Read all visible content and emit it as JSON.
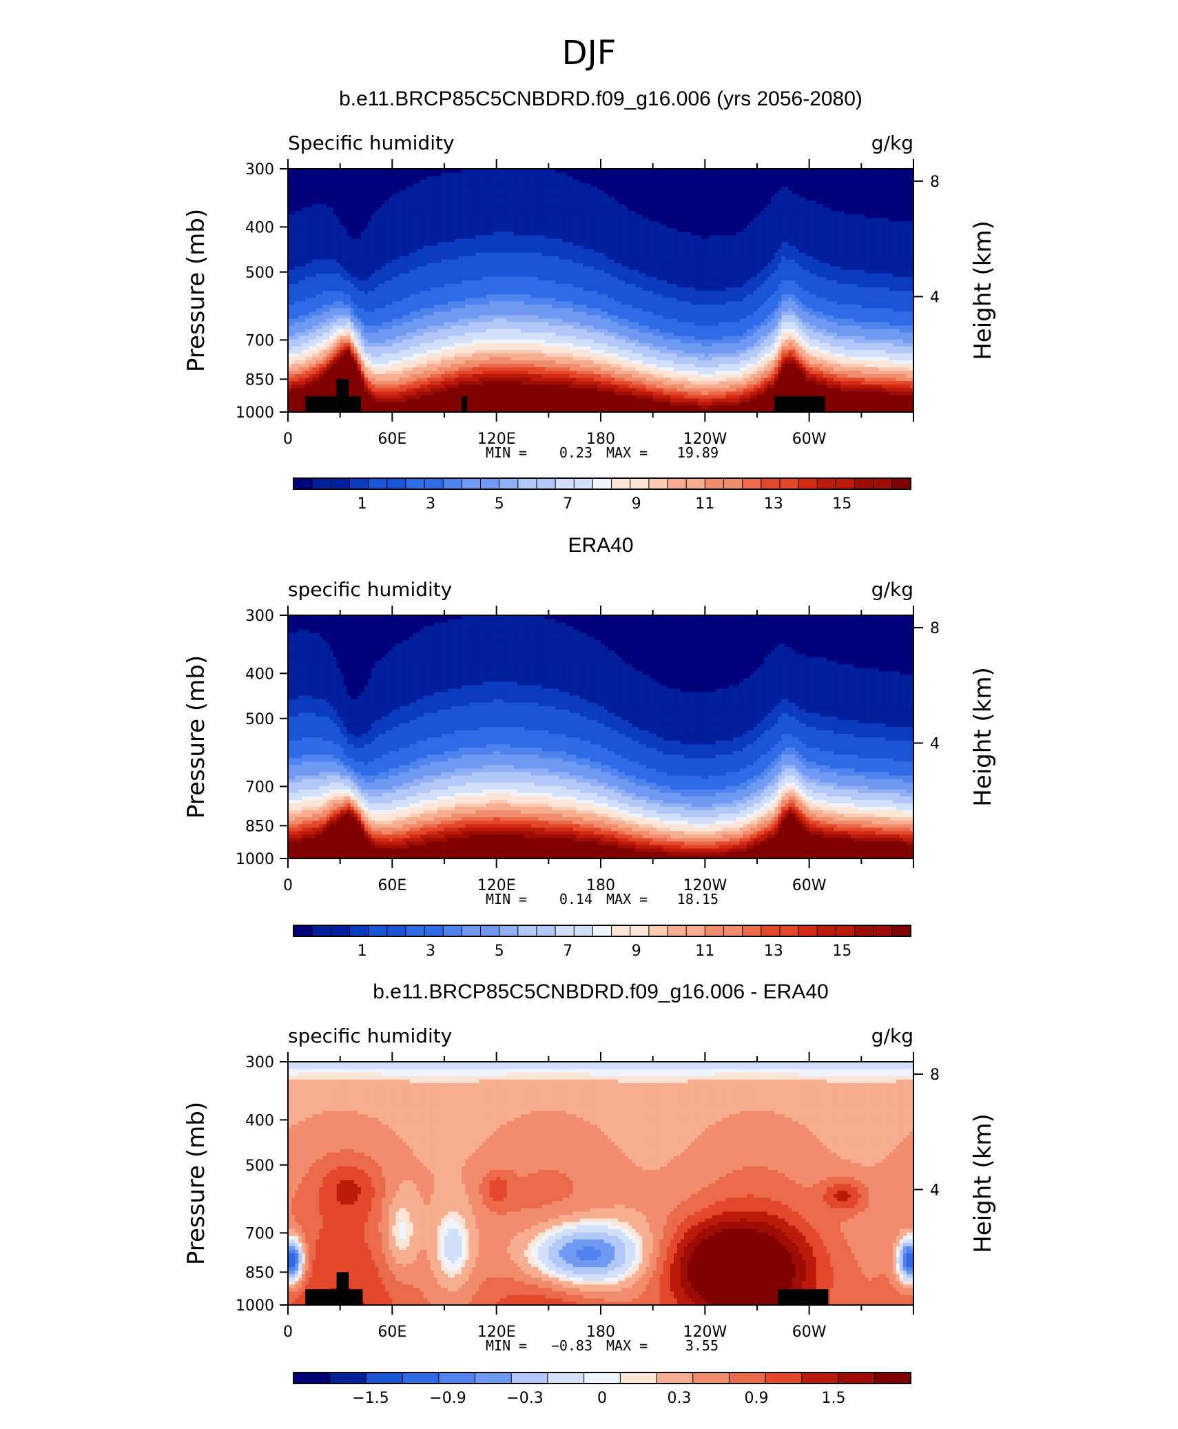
{
  "figure": {
    "title": "DJF"
  },
  "chart_data": [
    {
      "type": "heatmap",
      "title": "b.e11.BRCP85C5CNBDRD.f09_g16.006 (yrs 2056-2080)",
      "left_label": "Specific humidity",
      "units": "g/kg",
      "ylabel": "Pressure (mb)",
      "ylabel_right": "Height (km)",
      "x_ticks": [
        {
          "lon": 0,
          "label": "0"
        },
        {
          "lon": 60,
          "label": "60E"
        },
        {
          "lon": 120,
          "label": "120E"
        },
        {
          "lon": 180,
          "label": "180"
        },
        {
          "lon": 240,
          "label": "120W"
        },
        {
          "lon": 300,
          "label": "60W"
        }
      ],
      "xlim": [
        0,
        360
      ],
      "y_ticks": [
        {
          "p": 300,
          "label": "300"
        },
        {
          "p": 400,
          "label": "400"
        },
        {
          "p": 500,
          "label": "500"
        },
        {
          "p": 700,
          "label": "700"
        },
        {
          "p": 850,
          "label": "850"
        },
        {
          "p": 1000,
          "label": "1000"
        }
      ],
      "ylim": [
        1000,
        300
      ],
      "y_scale": "log",
      "y_right_ticks": [
        {
          "km": 4,
          "label": "4"
        },
        {
          "km": 8,
          "label": "8"
        }
      ],
      "min_label": "MIN =",
      "min_value": "0.23",
      "max_label": "MAX =",
      "max_value": "19.89",
      "colorbar": {
        "levels": [
          0.5,
          1,
          1.5,
          2,
          2.5,
          3,
          3.5,
          4,
          4.5,
          5,
          5.5,
          6,
          6.5,
          7,
          7.5,
          8,
          8.5,
          9,
          9.5,
          10,
          10.5,
          11,
          11.5,
          12,
          12.5,
          13,
          13.5,
          14,
          14.5,
          15,
          15.5,
          16
        ],
        "tick_labels": [
          "1",
          "3",
          "5",
          "7",
          "9",
          "11",
          "13",
          "15"
        ]
      },
      "profile": {
        "lons": [
          0,
          10,
          20,
          25,
          30,
          35,
          40,
          45,
          50,
          60,
          80,
          100,
          120,
          140,
          160,
          180,
          200,
          220,
          240,
          260,
          270,
          280,
          285,
          290,
          295,
          300,
          310,
          320,
          340,
          360
        ],
        "p_surf": [
          900,
          880,
          840,
          800,
          760,
          740,
          800,
          900,
          950,
          960,
          920,
          880,
          860,
          870,
          880,
          900,
          930,
          960,
          980,
          960,
          930,
          880,
          800,
          780,
          820,
          860,
          880,
          900,
          910,
          920
        ],
        "p_top": [
          395,
          380,
          370,
          380,
          400,
          430,
          440,
          420,
          390,
          360,
          330,
          320,
          310,
          310,
          325,
          350,
          390,
          420,
          440,
          430,
          400,
          360,
          340,
          350,
          360,
          365,
          380,
          390,
          400,
          410
        ]
      },
      "topography": [
        {
          "lon0": 10,
          "lon1": 28,
          "p": 925
        },
        {
          "lon0": 28,
          "lon1": 35,
          "p": 850
        },
        {
          "lon0": 35,
          "lon1": 42,
          "p": 925
        },
        {
          "lon0": 100,
          "lon1": 103,
          "p": 925
        },
        {
          "lon0": 280,
          "lon1": 309,
          "p": 925
        }
      ]
    },
    {
      "type": "heatmap",
      "title": "ERA40",
      "left_label": "specific humidity",
      "units": "g/kg",
      "ylabel": "Pressure (mb)",
      "ylabel_right": "Height (km)",
      "x_ticks": [
        {
          "lon": 0,
          "label": "0"
        },
        {
          "lon": 60,
          "label": "60E"
        },
        {
          "lon": 120,
          "label": "120E"
        },
        {
          "lon": 180,
          "label": "180"
        },
        {
          "lon": 240,
          "label": "120W"
        },
        {
          "lon": 300,
          "label": "60W"
        }
      ],
      "xlim": [
        0,
        360
      ],
      "y_ticks": [
        {
          "p": 300,
          "label": "300"
        },
        {
          "p": 400,
          "label": "400"
        },
        {
          "p": 500,
          "label": "500"
        },
        {
          "p": 700,
          "label": "700"
        },
        {
          "p": 850,
          "label": "850"
        },
        {
          "p": 1000,
          "label": "1000"
        }
      ],
      "ylim": [
        1000,
        300
      ],
      "y_scale": "log",
      "y_right_ticks": [
        {
          "km": 4,
          "label": "4"
        },
        {
          "km": 8,
          "label": "8"
        }
      ],
      "min_label": "MIN =",
      "min_value": "0.14",
      "max_label": "MAX =",
      "max_value": "18.15",
      "colorbar": {
        "levels": [
          0.5,
          1,
          1.5,
          2,
          2.5,
          3,
          3.5,
          4,
          4.5,
          5,
          5.5,
          6,
          6.5,
          7,
          7.5,
          8,
          8.5,
          9,
          9.5,
          10,
          10.5,
          11,
          11.5,
          12,
          12.5,
          13,
          13.5,
          14,
          14.5,
          15,
          15.5,
          16
        ],
        "tick_labels": [
          "1",
          "3",
          "5",
          "7",
          "9",
          "11",
          "13",
          "15"
        ]
      },
      "profile": {
        "lons": [
          0,
          10,
          20,
          25,
          30,
          35,
          40,
          45,
          50,
          60,
          80,
          100,
          120,
          140,
          160,
          180,
          200,
          220,
          240,
          260,
          270,
          280,
          285,
          290,
          295,
          300,
          310,
          320,
          340,
          360
        ],
        "p_surf": [
          930,
          910,
          890,
          850,
          820,
          800,
          830,
          900,
          950,
          960,
          930,
          900,
          890,
          900,
          910,
          930,
          960,
          980,
          990,
          970,
          940,
          900,
          830,
          800,
          840,
          880,
          900,
          910,
          920,
          930
        ],
        "p_top": [
          345,
          340,
          350,
          370,
          410,
          460,
          470,
          440,
          400,
          370,
          335,
          320,
          310,
          315,
          330,
          360,
          410,
          450,
          460,
          440,
          410,
          370,
          360,
          370,
          380,
          385,
          390,
          400,
          410,
          420
        ]
      },
      "topography": []
    },
    {
      "type": "heatmap",
      "title": "b.e11.BRCP85C5CNBDRD.f09_g16.006 - ERA40",
      "left_label": "specific humidity",
      "units": "g/kg",
      "ylabel": "Pressure (mb)",
      "ylabel_right": "Height (km)",
      "x_ticks": [
        {
          "lon": 0,
          "label": "0"
        },
        {
          "lon": 60,
          "label": "60E"
        },
        {
          "lon": 120,
          "label": "120E"
        },
        {
          "lon": 180,
          "label": "180"
        },
        {
          "lon": 240,
          "label": "120W"
        },
        {
          "lon": 300,
          "label": "60W"
        }
      ],
      "xlim": [
        0,
        360
      ],
      "y_ticks": [
        {
          "p": 300,
          "label": "300"
        },
        {
          "p": 400,
          "label": "400"
        },
        {
          "p": 500,
          "label": "500"
        },
        {
          "p": 700,
          "label": "700"
        },
        {
          "p": 850,
          "label": "850"
        },
        {
          "p": 1000,
          "label": "1000"
        }
      ],
      "ylim": [
        1000,
        300
      ],
      "y_scale": "log",
      "y_right_ticks": [
        {
          "km": 4,
          "label": "4"
        },
        {
          "km": 8,
          "label": "8"
        }
      ],
      "min_label": "MIN =",
      "min_value": "−0.83",
      "max_label": "MAX =",
      "max_value": "3.55",
      "colorbar": {
        "levels": [
          -2.1,
          -1.8,
          -1.5,
          -1.2,
          -0.9,
          -0.6,
          -0.3,
          0,
          0.15,
          0.3,
          0.6,
          0.9,
          1.2,
          1.5,
          1.8,
          2.1
        ],
        "tick_labels": [
          "−1.5",
          "−0.9",
          "−0.3",
          "0",
          "0.3",
          "0.9",
          "1.5"
        ]
      },
      "difference_features": {
        "blobs": [
          {
            "lon": 170,
            "p": 780,
            "lon_w": 26,
            "p_w": 0.12,
            "amp": -2.2
          },
          {
            "lon": 2,
            "p": 800,
            "lon_w": 5,
            "p_w": 0.08,
            "amp": -2.6
          },
          {
            "lon": 358,
            "p": 800,
            "lon_w": 5,
            "p_w": 0.08,
            "amp": -2.6
          },
          {
            "lon": 255,
            "p": 820,
            "lon_w": 30,
            "p_w": 0.16,
            "amp": 1.8
          },
          {
            "lon": 320,
            "p": 580,
            "lon_w": 9,
            "p_w": 0.06,
            "amp": 0.9
          },
          {
            "lon": 35,
            "p": 560,
            "lon_w": 12,
            "p_w": 0.1,
            "amp": 0.6
          },
          {
            "lon": 120,
            "p": 560,
            "lon_w": 6,
            "p_w": 0.06,
            "amp": 0.6
          },
          {
            "lon": 95,
            "p": 750,
            "lon_w": 8,
            "p_w": 0.14,
            "amp": -0.9
          },
          {
            "lon": 65,
            "p": 700,
            "lon_w": 7,
            "p_w": 0.14,
            "amp": -0.8
          }
        ]
      },
      "topography": [
        {
          "lon0": 10,
          "lon1": 28,
          "p": 925
        },
        {
          "lon0": 28,
          "lon1": 35,
          "p": 850
        },
        {
          "lon0": 35,
          "lon1": 43,
          "p": 925
        },
        {
          "lon0": 282,
          "lon1": 311,
          "p": 925
        }
      ]
    }
  ],
  "colors": {
    "diverging": [
      "#00007a",
      "#001f9c",
      "#0b3bbf",
      "#1a55d6",
      "#2e6be6",
      "#4f83ee",
      "#7099f2",
      "#91b0f5",
      "#b2c8f8",
      "#d2e0fb",
      "#f0f4fd",
      "#fde5d7",
      "#fbcbb3",
      "#f7ad90",
      "#f18c6c",
      "#eb6a49",
      "#e4482b",
      "#d42a15",
      "#bb1a0a",
      "#9e0d05",
      "#800000"
    ],
    "frame": "#000000"
  }
}
